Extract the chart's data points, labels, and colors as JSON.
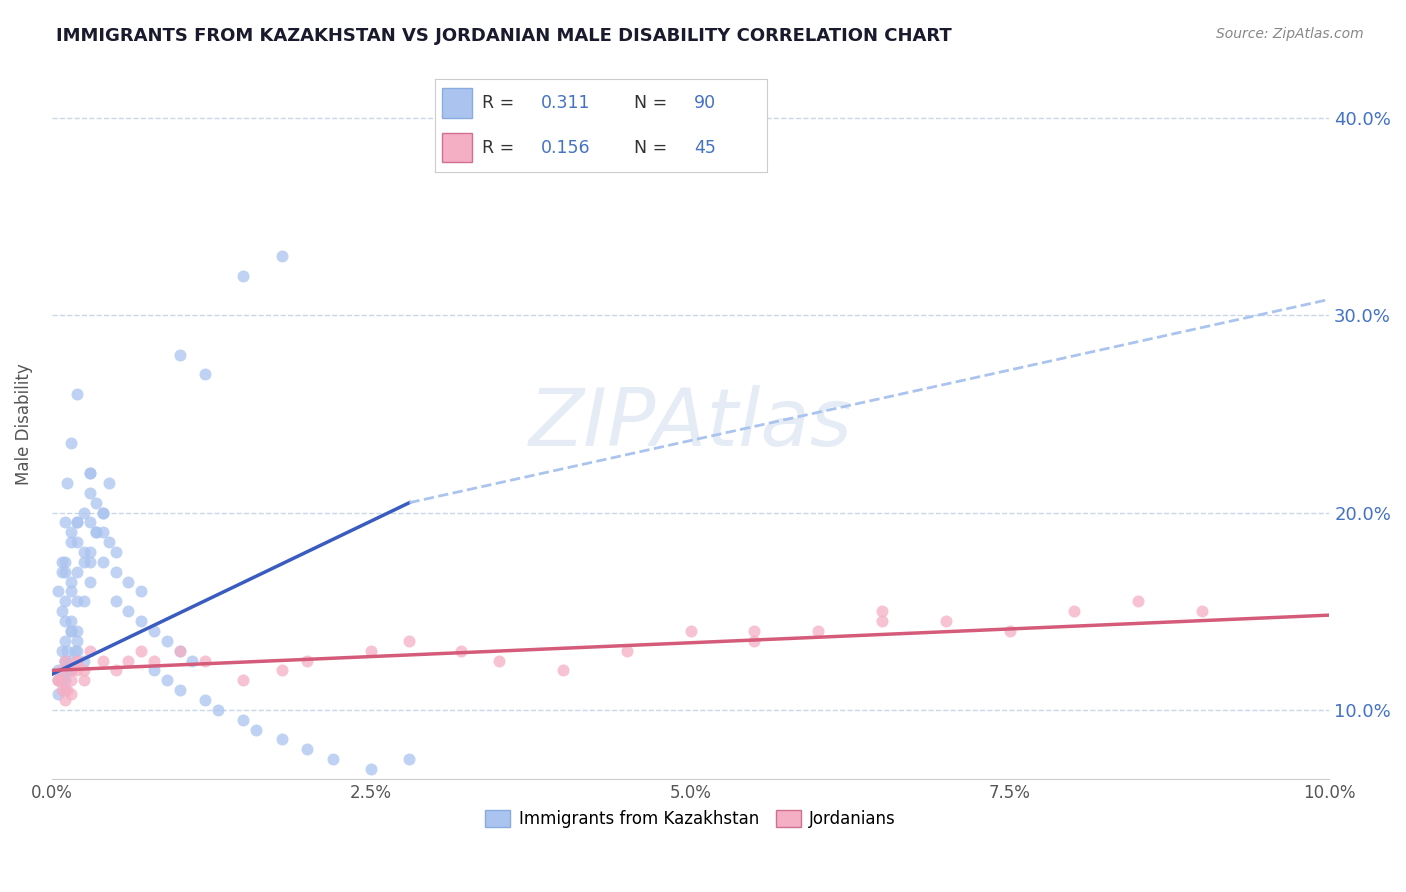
{
  "title": "IMMIGRANTS FROM KAZAKHSTAN VS JORDANIAN MALE DISABILITY CORRELATION CHART",
  "source_text": "Source: ZipAtlas.com",
  "ylabel": "Male Disability",
  "xlim": [
    0.0,
    0.1
  ],
  "ylim": [
    0.065,
    0.425
  ],
  "xtick_labels": [
    "0.0%",
    "2.5%",
    "5.0%",
    "7.5%",
    "10.0%"
  ],
  "xtick_vals": [
    0.0,
    0.025,
    0.05,
    0.075,
    0.1
  ],
  "ytick_labels": [
    "10.0%",
    "20.0%",
    "30.0%",
    "40.0%"
  ],
  "ytick_vals": [
    0.1,
    0.2,
    0.3,
    0.4
  ],
  "blue_dot_color": "#aac4ef",
  "pink_dot_color": "#f5afc4",
  "blue_line_color": "#3a5bbf",
  "pink_line_color": "#d45c7a",
  "dashed_line_color": "#aac4ef",
  "legend_label1": "Immigrants from Kazakhstan",
  "legend_label2": "Jordanians",
  "watermark": "ZIPAtlas",
  "title_color": "#1a1a2e",
  "axis_label_color": "#555555",
  "background_color": "#ffffff",
  "grid_color": "#c8d8e8",
  "right_tick_color": "#4472c4",
  "blue_scatter_x": [
    0.0005,
    0.001,
    0.0015,
    0.001,
    0.0005,
    0.0008,
    0.001,
    0.0012,
    0.0015,
    0.0018,
    0.002,
    0.0015,
    0.001,
    0.0008,
    0.0005,
    0.001,
    0.002,
    0.0015,
    0.0025,
    0.001,
    0.0008,
    0.0015,
    0.002,
    0.0025,
    0.003,
    0.0015,
    0.002,
    0.0025,
    0.003,
    0.0035,
    0.002,
    0.0025,
    0.003,
    0.0035,
    0.004,
    0.003,
    0.0035,
    0.004,
    0.0045,
    0.003,
    0.004,
    0.0045,
    0.005,
    0.004,
    0.005,
    0.006,
    0.007,
    0.005,
    0.006,
    0.007,
    0.008,
    0.009,
    0.01,
    0.011,
    0.008,
    0.009,
    0.01,
    0.012,
    0.013,
    0.015,
    0.016,
    0.018,
    0.02,
    0.022,
    0.025,
    0.028,
    0.01,
    0.012,
    0.015,
    0.018,
    0.0005,
    0.0008,
    0.001,
    0.0012,
    0.0015,
    0.002,
    0.0025,
    0.001,
    0.0015,
    0.002,
    0.003,
    0.0015,
    0.002,
    0.0008,
    0.001,
    0.0012,
    0.003,
    0.0015,
    0.002,
    0.001
  ],
  "blue_scatter_y": [
    0.115,
    0.125,
    0.12,
    0.11,
    0.108,
    0.13,
    0.115,
    0.12,
    0.125,
    0.13,
    0.135,
    0.14,
    0.145,
    0.15,
    0.16,
    0.155,
    0.14,
    0.16,
    0.155,
    0.17,
    0.175,
    0.165,
    0.17,
    0.175,
    0.18,
    0.19,
    0.185,
    0.18,
    0.175,
    0.19,
    0.195,
    0.2,
    0.195,
    0.19,
    0.2,
    0.21,
    0.205,
    0.2,
    0.215,
    0.22,
    0.19,
    0.185,
    0.18,
    0.175,
    0.17,
    0.165,
    0.16,
    0.155,
    0.15,
    0.145,
    0.14,
    0.135,
    0.13,
    0.125,
    0.12,
    0.115,
    0.11,
    0.105,
    0.1,
    0.095,
    0.09,
    0.085,
    0.08,
    0.075,
    0.07,
    0.075,
    0.28,
    0.27,
    0.32,
    0.33,
    0.12,
    0.115,
    0.125,
    0.13,
    0.14,
    0.13,
    0.125,
    0.135,
    0.145,
    0.155,
    0.22,
    0.235,
    0.26,
    0.17,
    0.195,
    0.215,
    0.165,
    0.185,
    0.195,
    0.175
  ],
  "pink_scatter_x": [
    0.0005,
    0.0008,
    0.001,
    0.0015,
    0.002,
    0.001,
    0.0008,
    0.0015,
    0.002,
    0.0025,
    0.002,
    0.0025,
    0.003,
    0.004,
    0.005,
    0.006,
    0.007,
    0.008,
    0.01,
    0.012,
    0.015,
    0.018,
    0.02,
    0.025,
    0.028,
    0.032,
    0.035,
    0.04,
    0.045,
    0.05,
    0.055,
    0.06,
    0.065,
    0.055,
    0.065,
    0.07,
    0.075,
    0.08,
    0.085,
    0.09,
    0.0005,
    0.0008,
    0.001,
    0.0012,
    0.0015
  ],
  "pink_scatter_y": [
    0.115,
    0.12,
    0.11,
    0.115,
    0.12,
    0.125,
    0.115,
    0.12,
    0.125,
    0.115,
    0.125,
    0.12,
    0.13,
    0.125,
    0.12,
    0.125,
    0.13,
    0.125,
    0.13,
    0.125,
    0.115,
    0.12,
    0.125,
    0.13,
    0.135,
    0.13,
    0.125,
    0.12,
    0.13,
    0.14,
    0.135,
    0.14,
    0.145,
    0.14,
    0.15,
    0.145,
    0.14,
    0.15,
    0.155,
    0.15,
    0.115,
    0.11,
    0.105,
    0.11,
    0.108
  ],
  "blue_line_x0": 0.0,
  "blue_line_y0": 0.118,
  "blue_line_x1": 0.028,
  "blue_line_y1": 0.205,
  "dashed_line_x0": 0.028,
  "dashed_line_y0": 0.205,
  "dashed_line_x1": 0.1,
  "dashed_line_y1": 0.308,
  "pink_line_x0": 0.0,
  "pink_line_y0": 0.12,
  "pink_line_x1": 0.1,
  "pink_line_y1": 0.148
}
